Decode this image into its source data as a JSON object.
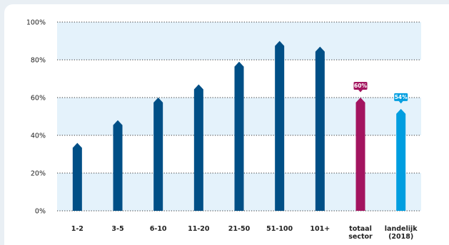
{
  "chart_data": {
    "type": "bar",
    "categories": [
      [
        "1-2"
      ],
      [
        "3-5"
      ],
      [
        "6-10"
      ],
      [
        "11-20"
      ],
      [
        "21-50"
      ],
      [
        "51-100"
      ],
      [
        "101+"
      ],
      [
        "totaal",
        "sector"
      ],
      [
        "landelijk",
        "(2018)"
      ]
    ],
    "values": [
      36,
      48,
      60,
      67,
      79,
      90,
      87,
      60,
      54
    ],
    "data_labels": [
      "",
      "",
      "",
      "",
      "",
      "",
      "",
      "60%",
      "54%"
    ],
    "bar_colors": [
      "#004f86",
      "#004f86",
      "#004f86",
      "#004f86",
      "#004f86",
      "#004f86",
      "#004f86",
      "#a3145f",
      "#009ee0"
    ],
    "y_ticks": [
      {
        "value": 0,
        "label": "0%"
      },
      {
        "value": 20,
        "label": "20%"
      },
      {
        "value": 40,
        "label": "40%"
      },
      {
        "value": 60,
        "label": "60%"
      },
      {
        "value": 80,
        "label": "80%"
      },
      {
        "value": 100,
        "label": "100%"
      }
    ],
    "ylim": [
      0,
      100
    ],
    "grid": true,
    "band_color": "#e4f2fb",
    "grid_color": "#333333"
  }
}
